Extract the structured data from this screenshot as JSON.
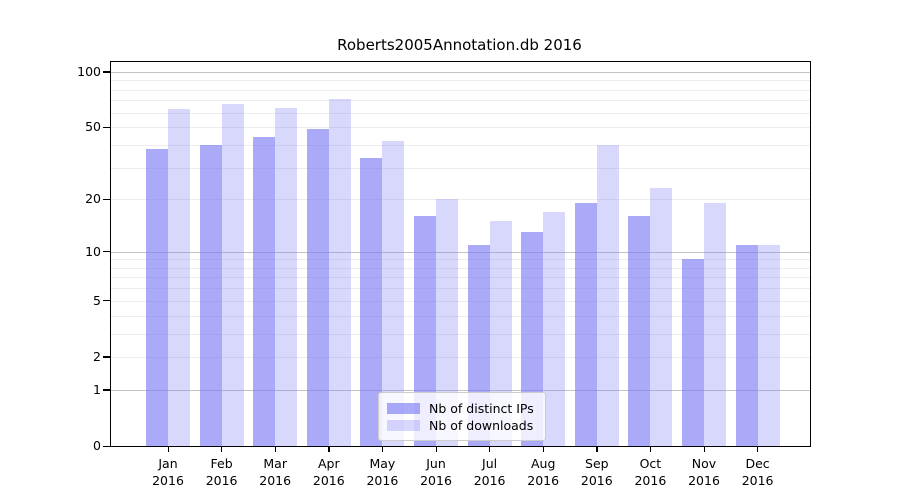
{
  "title": "Roberts2005Annotation.db 2016",
  "chart_data": {
    "type": "bar",
    "title": "Roberts2005Annotation.db 2016",
    "categories": [
      "Jan 2016",
      "Feb 2016",
      "Mar 2016",
      "Apr 2016",
      "May 2016",
      "Jun 2016",
      "Jul 2016",
      "Aug 2016",
      "Sep 2016",
      "Oct 2016",
      "Nov 2016",
      "Dec 2016"
    ],
    "x_tick_line1": [
      "Jan",
      "Feb",
      "Mar",
      "Apr",
      "May",
      "Jun",
      "Jul",
      "Aug",
      "Sep",
      "Oct",
      "Nov",
      "Dec"
    ],
    "x_tick_line2": [
      "2016",
      "2016",
      "2016",
      "2016",
      "2016",
      "2016",
      "2016",
      "2016",
      "2016",
      "2016",
      "2016",
      "2016"
    ],
    "series": [
      {
        "name": "Nb of distinct IPs",
        "color": "rgba(125,125,246,0.65)",
        "values": [
          38,
          40,
          44,
          49,
          34,
          16,
          11,
          13,
          19,
          16,
          9,
          11
        ]
      },
      {
        "name": "Nb of downloads",
        "color": "rgba(125,125,246,0.30)",
        "values": [
          63,
          67,
          64,
          71,
          42,
          20,
          15,
          17,
          40,
          23,
          19,
          11
        ]
      }
    ],
    "y_scale": "log1p",
    "y_ticks": [
      0,
      1,
      2,
      5,
      10,
      20,
      50,
      100
    ],
    "y_minor_gridlines": [
      2,
      3,
      4,
      5,
      6,
      7,
      8,
      9,
      20,
      30,
      40,
      50,
      60,
      70,
      80,
      90
    ],
    "y_major_gridlines": [
      1,
      10,
      100
    ],
    "ylim": [
      0,
      113
    ],
    "xlabel": "",
    "ylabel": "",
    "grid": "horizontal",
    "legend_position": "lower center",
    "colors": {
      "bar_dark": "rgba(125,125,246,0.65)",
      "bar_light": "rgba(125,125,246,0.30)",
      "frame": "#000000",
      "grid_minor": "#ececec",
      "grid_major": "#c3c3c3"
    }
  }
}
